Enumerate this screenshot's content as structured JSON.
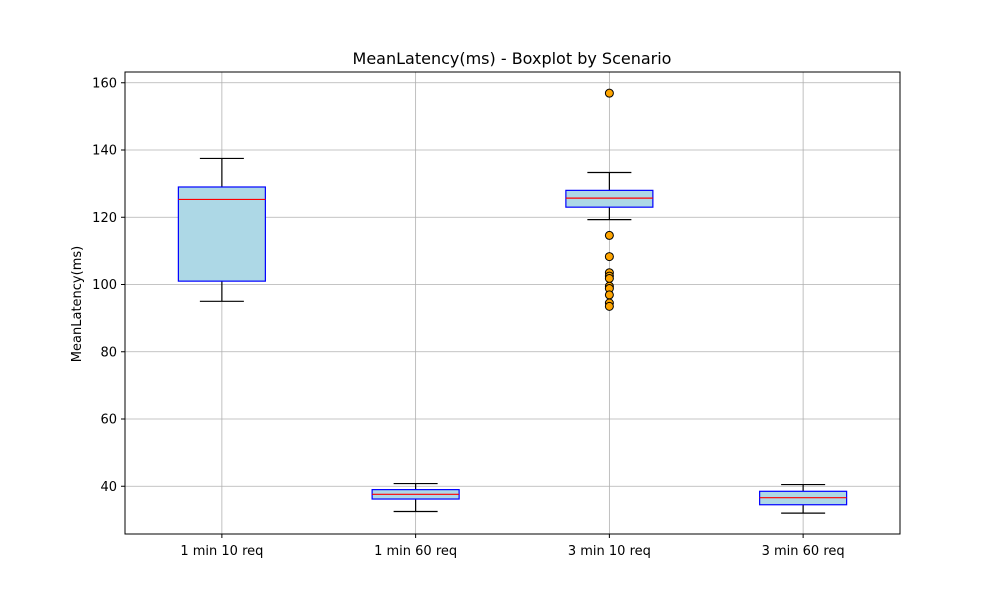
{
  "chart_data": {
    "type": "boxplot",
    "title": "MeanLatency(ms) - Boxplot by Scenario",
    "xlabel": "",
    "ylabel": "MeanLatency(ms)",
    "ylim": [
      25.8,
      163.2
    ],
    "yticks": [
      40,
      60,
      80,
      100,
      120,
      140,
      160
    ],
    "grid": true,
    "colors": {
      "box_fill": "#add8e6",
      "box_edge": "#0000ff",
      "median": "#ff0000",
      "whisker": "#000000",
      "outlier_fill": "#ffa500",
      "grid": "#b0b0b0"
    },
    "categories": [
      "1 min 10 req",
      "1 min 60 req",
      "3 min 10 req",
      "3 min 60 req"
    ],
    "boxes": [
      {
        "min": 95.0,
        "q1": 101.0,
        "median": 125.3,
        "q3": 129.0,
        "max": 137.5,
        "outliers": []
      },
      {
        "min": 32.5,
        "q1": 36.2,
        "median": 37.6,
        "q3": 39.0,
        "max": 40.8,
        "outliers": []
      },
      {
        "min": 119.3,
        "q1": 123.0,
        "median": 125.7,
        "q3": 128.0,
        "max": 133.3,
        "outliers": [
          156.9,
          114.6,
          108.3,
          103.5,
          102.5,
          101.8,
          99.5,
          98.8,
          96.9,
          94.5,
          93.5
        ]
      },
      {
        "min": 32.0,
        "q1": 34.5,
        "median": 36.6,
        "q3": 38.5,
        "max": 40.5,
        "outliers": []
      }
    ]
  }
}
